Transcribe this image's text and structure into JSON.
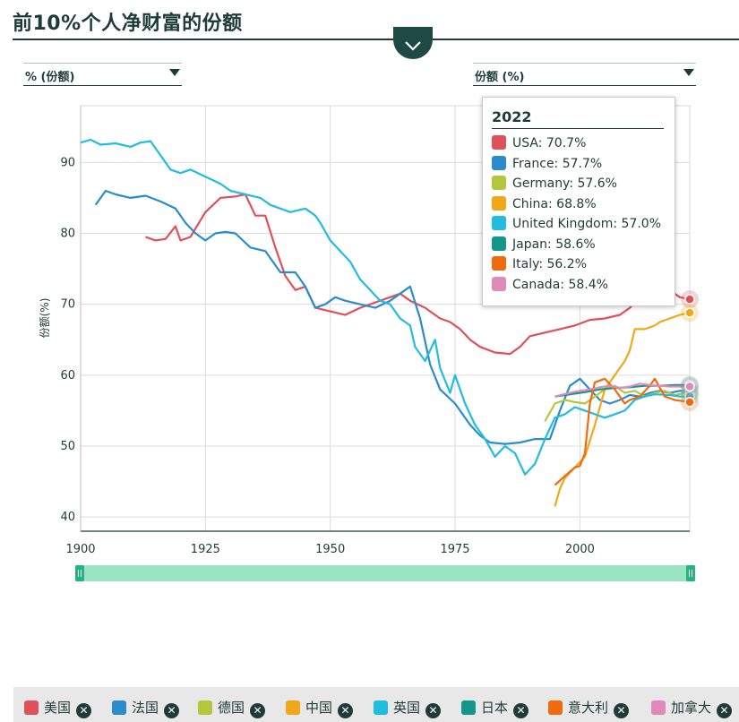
{
  "title": "前10%个人净财富的份额",
  "dropdowns": {
    "left_label": "% (份额)",
    "right_label": "份额 (%)"
  },
  "icons": {
    "collapse": "chevron-down-icon",
    "remove": "close-icon"
  },
  "tooltip": {
    "year": "2022",
    "rows": [
      {
        "text": "USA: 70.7%",
        "color": "#e0505b"
      },
      {
        "text": "France: 57.7%",
        "color": "#2a8ccc"
      },
      {
        "text": "Germany: 57.6%",
        "color": "#b3c73d"
      },
      {
        "text": "China: 68.8%",
        "color": "#f0a818"
      },
      {
        "text": "United Kingdom: 57.0%",
        "color": "#20bde0"
      },
      {
        "text": "Japan: 58.6%",
        "color": "#14968a"
      },
      {
        "text": "Italy: 56.2%",
        "color": "#f06a10"
      },
      {
        "text": "Canada: 58.4%",
        "color": "#e08ab8"
      }
    ]
  },
  "legend": [
    {
      "label": "美国",
      "color": "#e0505b"
    },
    {
      "label": "法国",
      "color": "#2a8ccc"
    },
    {
      "label": "德国",
      "color": "#b3c73d"
    },
    {
      "label": "中国",
      "color": "#f0a818"
    },
    {
      "label": "英国",
      "color": "#20bde0"
    },
    {
      "label": "日本",
      "color": "#14968a"
    },
    {
      "label": "意大利",
      "color": "#f06a10"
    },
    {
      "label": "加拿大",
      "color": "#e08ab8"
    }
  ],
  "chart_data": {
    "type": "line",
    "title": "前10%个人净财富的份额",
    "ylabel": "份额(%)",
    "xlabel": "",
    "xlim": [
      1900,
      2022
    ],
    "ylim": [
      38,
      98
    ],
    "x_ticks": [
      1900,
      1925,
      1950,
      1975,
      2000
    ],
    "y_ticks": [
      40,
      50,
      60,
      70,
      80,
      90
    ],
    "grid": true,
    "highlight_year": 2022,
    "series": [
      {
        "name": "美国",
        "color": "#e0505b",
        "points": [
          [
            1913,
            79.5
          ],
          [
            1915,
            79
          ],
          [
            1917,
            79.2
          ],
          [
            1919,
            81
          ],
          [
            1920,
            79
          ],
          [
            1922,
            79.5
          ],
          [
            1925,
            83
          ],
          [
            1928,
            85
          ],
          [
            1931,
            85.2
          ],
          [
            1933,
            85.5
          ],
          [
            1935,
            82.5
          ],
          [
            1937,
            82.5
          ],
          [
            1939,
            78
          ],
          [
            1941,
            74
          ],
          [
            1943,
            72
          ],
          [
            1945,
            72.5
          ],
          [
            1947,
            69.5
          ],
          [
            1950,
            69
          ],
          [
            1953,
            68.5
          ],
          [
            1956,
            69.5
          ],
          [
            1960,
            70.5
          ],
          [
            1964,
            71.5
          ],
          [
            1966,
            70.5
          ],
          [
            1969,
            69.5
          ],
          [
            1972,
            68
          ],
          [
            1974,
            67.5
          ],
          [
            1976,
            66.5
          ],
          [
            1978,
            65
          ],
          [
            1980,
            64
          ],
          [
            1983,
            63.2
          ],
          [
            1986,
            63
          ],
          [
            1988,
            64
          ],
          [
            1990,
            65.5
          ],
          [
            1993,
            66
          ],
          [
            1996,
            66.5
          ],
          [
            1999,
            67
          ],
          [
            2002,
            67.8
          ],
          [
            2005,
            68
          ],
          [
            2008,
            68.5
          ],
          [
            2010,
            69.5
          ],
          [
            2012,
            71
          ],
          [
            2014,
            72.5
          ],
          [
            2016,
            73
          ],
          [
            2018,
            72
          ],
          [
            2020,
            71
          ],
          [
            2022,
            70.7
          ]
        ]
      },
      {
        "name": "法国",
        "color": "#2a8ccc",
        "points": [
          [
            1903,
            84
          ],
          [
            1905,
            86
          ],
          [
            1907,
            85.5
          ],
          [
            1910,
            85
          ],
          [
            1913,
            85.3
          ],
          [
            1916,
            84.5
          ],
          [
            1919,
            83.5
          ],
          [
            1921,
            81.5
          ],
          [
            1923,
            80
          ],
          [
            1925,
            79
          ],
          [
            1927,
            80
          ],
          [
            1929,
            80.2
          ],
          [
            1931,
            80
          ],
          [
            1934,
            78
          ],
          [
            1937,
            77.5
          ],
          [
            1940,
            74.5
          ],
          [
            1943,
            74.5
          ],
          [
            1945,
            72.5
          ],
          [
            1947,
            69.5
          ],
          [
            1949,
            70
          ],
          [
            1951,
            71
          ],
          [
            1953,
            70.5
          ],
          [
            1956,
            70
          ],
          [
            1959,
            69.5
          ],
          [
            1962,
            70.5
          ],
          [
            1965,
            72
          ],
          [
            1966,
            72.5
          ],
          [
            1968,
            68
          ],
          [
            1970,
            61.5
          ],
          [
            1972,
            58
          ],
          [
            1975,
            56
          ],
          [
            1978,
            53
          ],
          [
            1980,
            51.5
          ],
          [
            1982,
            50.5
          ],
          [
            1985,
            50.3
          ],
          [
            1988,
            50.5
          ],
          [
            1991,
            51
          ],
          [
            1994,
            51
          ],
          [
            1996,
            55
          ],
          [
            1998,
            58.5
          ],
          [
            2000,
            59.5
          ],
          [
            2002,
            58
          ],
          [
            2004,
            56.5
          ],
          [
            2006,
            56
          ],
          [
            2008,
            56.5
          ],
          [
            2010,
            57.2
          ],
          [
            2012,
            57
          ],
          [
            2014,
            57.5
          ],
          [
            2016,
            57.8
          ],
          [
            2018,
            57.5
          ],
          [
            2020,
            57.8
          ],
          [
            2022,
            57.7
          ]
        ]
      },
      {
        "name": "德国",
        "color": "#b3c73d",
        "points": [
          [
            1993,
            53.5
          ],
          [
            1995,
            56
          ],
          [
            1997,
            56.5
          ],
          [
            1999,
            56.2
          ],
          [
            2001,
            56
          ],
          [
            2003,
            57
          ],
          [
            2005,
            58
          ],
          [
            2007,
            58.5
          ],
          [
            2009,
            57.5
          ],
          [
            2011,
            57.8
          ],
          [
            2013,
            57
          ],
          [
            2015,
            57.5
          ],
          [
            2017,
            57.8
          ],
          [
            2019,
            57.2
          ],
          [
            2022,
            57.6
          ]
        ]
      },
      {
        "name": "中国",
        "color": "#f0a818",
        "points": [
          [
            1995,
            41.5
          ],
          [
            1996,
            44
          ],
          [
            1997,
            45.5
          ],
          [
            1999,
            47
          ],
          [
            2001,
            48.5
          ],
          [
            2003,
            53
          ],
          [
            2005,
            58
          ],
          [
            2007,
            60
          ],
          [
            2009,
            62
          ],
          [
            2010,
            63.5
          ],
          [
            2011,
            66.5
          ],
          [
            2013,
            66.5
          ],
          [
            2015,
            67
          ],
          [
            2016,
            67.5
          ],
          [
            2018,
            68
          ],
          [
            2020,
            68.5
          ],
          [
            2022,
            68.8
          ]
        ]
      },
      {
        "name": "英国",
        "color": "#20bde0",
        "points": [
          [
            1900,
            92.8
          ],
          [
            1902,
            93.2
          ],
          [
            1904,
            92.5
          ],
          [
            1907,
            92.7
          ],
          [
            1910,
            92.2
          ],
          [
            1912,
            92.8
          ],
          [
            1914,
            93
          ],
          [
            1916,
            91
          ],
          [
            1918,
            89
          ],
          [
            1920,
            88.5
          ],
          [
            1922,
            89
          ],
          [
            1925,
            88
          ],
          [
            1928,
            87
          ],
          [
            1930,
            86
          ],
          [
            1933,
            85.5
          ],
          [
            1936,
            85
          ],
          [
            1938,
            84
          ],
          [
            1940,
            83.5
          ],
          [
            1942,
            83
          ],
          [
            1945,
            83.5
          ],
          [
            1947,
            82.5
          ],
          [
            1948,
            81.5
          ],
          [
            1950,
            79
          ],
          [
            1952,
            77.5
          ],
          [
            1954,
            76
          ],
          [
            1956,
            73.5
          ],
          [
            1958,
            72
          ],
          [
            1960,
            70.5
          ],
          [
            1962,
            70
          ],
          [
            1964,
            68
          ],
          [
            1966,
            67
          ],
          [
            1967,
            64
          ],
          [
            1969,
            62
          ],
          [
            1971,
            65
          ],
          [
            1972,
            61
          ],
          [
            1974,
            57.5
          ],
          [
            1975,
            60
          ],
          [
            1977,
            56
          ],
          [
            1979,
            53
          ],
          [
            1981,
            51
          ],
          [
            1983,
            48.5
          ],
          [
            1985,
            50
          ],
          [
            1987,
            49
          ],
          [
            1989,
            46
          ],
          [
            1991,
            47.5
          ],
          [
            1993,
            51
          ],
          [
            1995,
            54
          ],
          [
            1997,
            54.5
          ],
          [
            1999,
            55.5
          ],
          [
            2001,
            55
          ],
          [
            2003,
            54.5
          ],
          [
            2005,
            54
          ],
          [
            2007,
            54.5
          ],
          [
            2009,
            55
          ],
          [
            2011,
            56.5
          ],
          [
            2013,
            57
          ],
          [
            2015,
            57.3
          ],
          [
            2018,
            57.2
          ],
          [
            2020,
            57
          ],
          [
            2022,
            57.0
          ]
        ]
      },
      {
        "name": "日本",
        "color": "#14968a",
        "points": [
          [
            1995,
            57
          ],
          [
            1998,
            57.3
          ],
          [
            2001,
            57.6
          ],
          [
            2004,
            58
          ],
          [
            2007,
            58.2
          ],
          [
            2010,
            58.3
          ],
          [
            2013,
            58.5
          ],
          [
            2016,
            58.5
          ],
          [
            2019,
            58.6
          ],
          [
            2022,
            58.6
          ]
        ]
      },
      {
        "name": "意大利",
        "color": "#f06a10",
        "points": [
          [
            1995,
            44.5
          ],
          [
            1997,
            45.8
          ],
          [
            1999,
            47
          ],
          [
            2000,
            47.2
          ],
          [
            2001,
            49
          ],
          [
            2002,
            56
          ],
          [
            2003,
            59
          ],
          [
            2005,
            59.5
          ],
          [
            2007,
            58
          ],
          [
            2009,
            56
          ],
          [
            2010,
            56.5
          ],
          [
            2012,
            57
          ],
          [
            2014,
            58.5
          ],
          [
            2015,
            59.5
          ],
          [
            2017,
            57
          ],
          [
            2019,
            56.5
          ],
          [
            2022,
            56.2
          ]
        ]
      },
      {
        "name": "加拿大",
        "color": "#e08ab8",
        "points": [
          [
            1995,
            57
          ],
          [
            1998,
            57.5
          ],
          [
            2000,
            57.8
          ],
          [
            2002,
            58
          ],
          [
            2004,
            58.3
          ],
          [
            2006,
            58.5
          ],
          [
            2008,
            58.2
          ],
          [
            2010,
            58.4
          ],
          [
            2012,
            58.8
          ],
          [
            2014,
            58.6
          ],
          [
            2016,
            58.5
          ],
          [
            2018,
            58.4
          ],
          [
            2020,
            58.4
          ],
          [
            2022,
            58.4
          ]
        ]
      }
    ]
  }
}
